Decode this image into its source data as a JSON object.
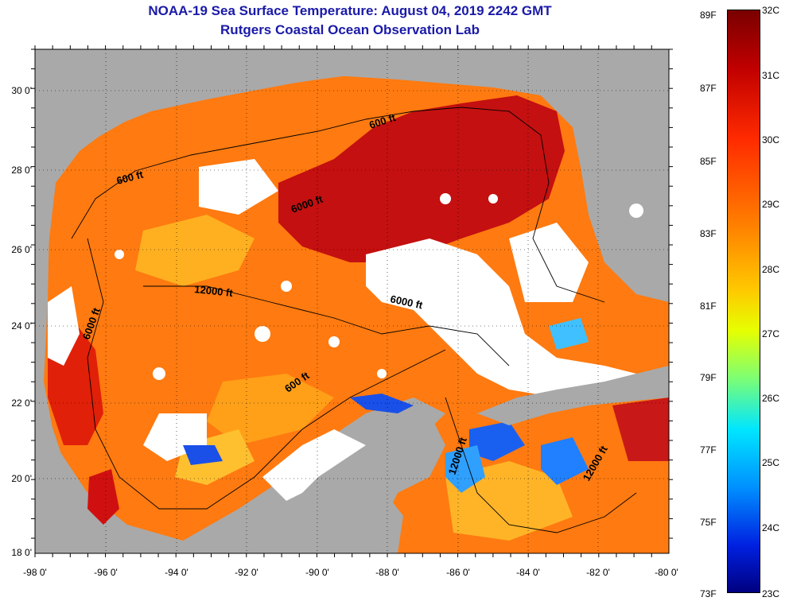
{
  "title": {
    "line1": "NOAA-19 Sea Surface Temperature:  August 04, 2019 2242 GMT",
    "line2": "Rutgers Coastal Ocean Observation Lab"
  },
  "axes": {
    "lat_labels": [
      "30 0'",
      "28 0'",
      "26 0'",
      "24 0'",
      "22 0'",
      "20 0'",
      "18 0'"
    ],
    "lon_labels": [
      "-98 0'",
      "-96 0'",
      "-94 0'",
      "-92 0'",
      "-90 0'",
      "-88 0'",
      "-86 0'",
      "-84 0'",
      "-82 0'",
      "-80 0'"
    ]
  },
  "contours": [
    {
      "label": "600 ft",
      "group": "a"
    },
    {
      "label": "600 ft",
      "group": "b"
    },
    {
      "label": "6000 ft",
      "group": "c"
    },
    {
      "label": "12000 ft",
      "group": "d"
    },
    {
      "label": "6000 ft",
      "group": "e"
    },
    {
      "label": "6000 ft",
      "group": "f"
    },
    {
      "label": "600 ft",
      "group": "g"
    },
    {
      "label": "12000 ft",
      "group": "h"
    },
    {
      "label": "12000 ft",
      "group": "i"
    }
  ],
  "colorbar": {
    "f_labels": [
      "89F",
      "87F",
      "85F",
      "83F",
      "81F",
      "79F",
      "77F",
      "75F",
      "73F"
    ],
    "c_labels": [
      "32C",
      "31C",
      "30C",
      "29C",
      "28C",
      "27C",
      "26C",
      "25C",
      "24C",
      "23C"
    ]
  },
  "colors": {
    "land": "#a9a9a9",
    "cloud": "#ffffff",
    "warm": "#ff6a00",
    "hot": "#c80000",
    "cool": "#1040e0",
    "title": "#1a1aa8"
  }
}
